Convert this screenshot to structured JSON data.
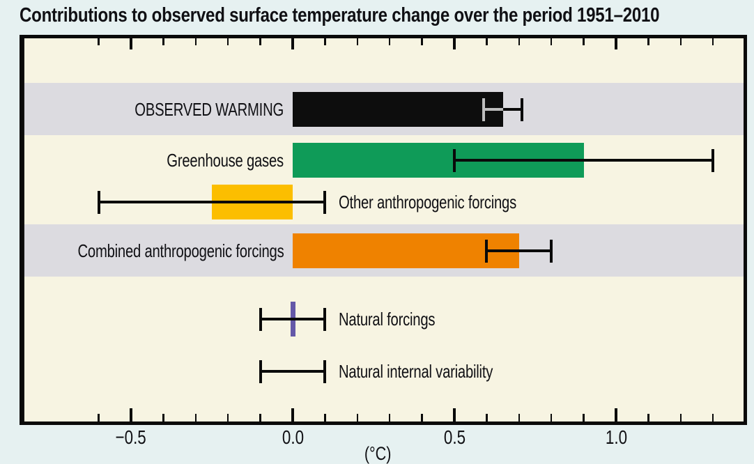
{
  "title": "Contributions to observed surface temperature change over the period 1951–2010",
  "axis": {
    "unit_label": "(°C)",
    "tick_labels": [
      {
        "v": -0.5,
        "label": "−0.5"
      },
      {
        "v": 0.0,
        "label": "0.0"
      },
      {
        "v": 0.5,
        "label": "0.5"
      },
      {
        "v": 1.0,
        "label": "1.0"
      }
    ]
  },
  "chart_data": {
    "type": "bar",
    "orientation": "horizontal",
    "title": "Contributions to observed surface temperature change over the period 1951–2010",
    "xlabel": "(°C)",
    "xlim": [
      -0.85,
      1.4
    ],
    "grid": false,
    "x_major_ticks": [
      -0.5,
      0.0,
      0.5,
      1.0
    ],
    "x_minor_tick_step": 0.1,
    "x_minor_tick_range": [
      -0.6,
      1.3
    ],
    "categories": [
      "OBSERVED WARMING",
      "Greenhouse gases",
      "Other anthropogenic forcings",
      "Combined anthropogenic forcings",
      "Natural forcings",
      "Natural internal variability"
    ],
    "values": [
      0.65,
      0.9,
      -0.25,
      0.7,
      0.0,
      null
    ],
    "uncertainty": [
      [
        0.59,
        0.71
      ],
      [
        0.5,
        1.3
      ],
      [
        -0.6,
        0.1
      ],
      [
        0.6,
        0.8
      ],
      [
        -0.1,
        0.1
      ],
      [
        -0.1,
        0.1
      ]
    ],
    "rows": [
      {
        "label": "OBSERVED WARMING",
        "side": "left",
        "value": 0.65,
        "color": "#0d0d0d",
        "whisker": [
          0.59,
          0.71
        ],
        "band": true,
        "whisker_overlay": {
          "from": 0.59,
          "to": 0.65,
          "color": "#bdbdbd"
        }
      },
      {
        "label": "Greenhouse gases",
        "side": "left",
        "value": 0.9,
        "color": "#0f9b58",
        "whisker": [
          0.5,
          1.3
        ],
        "band": false
      },
      {
        "label": "Other anthropogenic forcings",
        "side": "right",
        "value": -0.25,
        "color": "#fcbe00",
        "whisker": [
          -0.6,
          0.1
        ],
        "band": false
      },
      {
        "label": "Combined anthropogenic forcings",
        "side": "left",
        "value": 0.7,
        "color": "#ef8200",
        "whisker": [
          0.6,
          0.8
        ],
        "band": true
      },
      {
        "label": "Natural forcings",
        "side": "right",
        "value": 0.0,
        "color": "#6458a8",
        "whisker": [
          -0.1,
          0.1
        ],
        "band": false
      },
      {
        "label": "Natural internal variability",
        "side": "right",
        "value": null,
        "color": null,
        "whisker": [
          -0.1,
          0.1
        ],
        "band": false
      }
    ]
  },
  "colors": {
    "background": "#e6f1f1",
    "plot_background": "#f7f4e2",
    "band": "#dcdbe0",
    "frame": "#0a0a0a",
    "text": "#101014"
  }
}
